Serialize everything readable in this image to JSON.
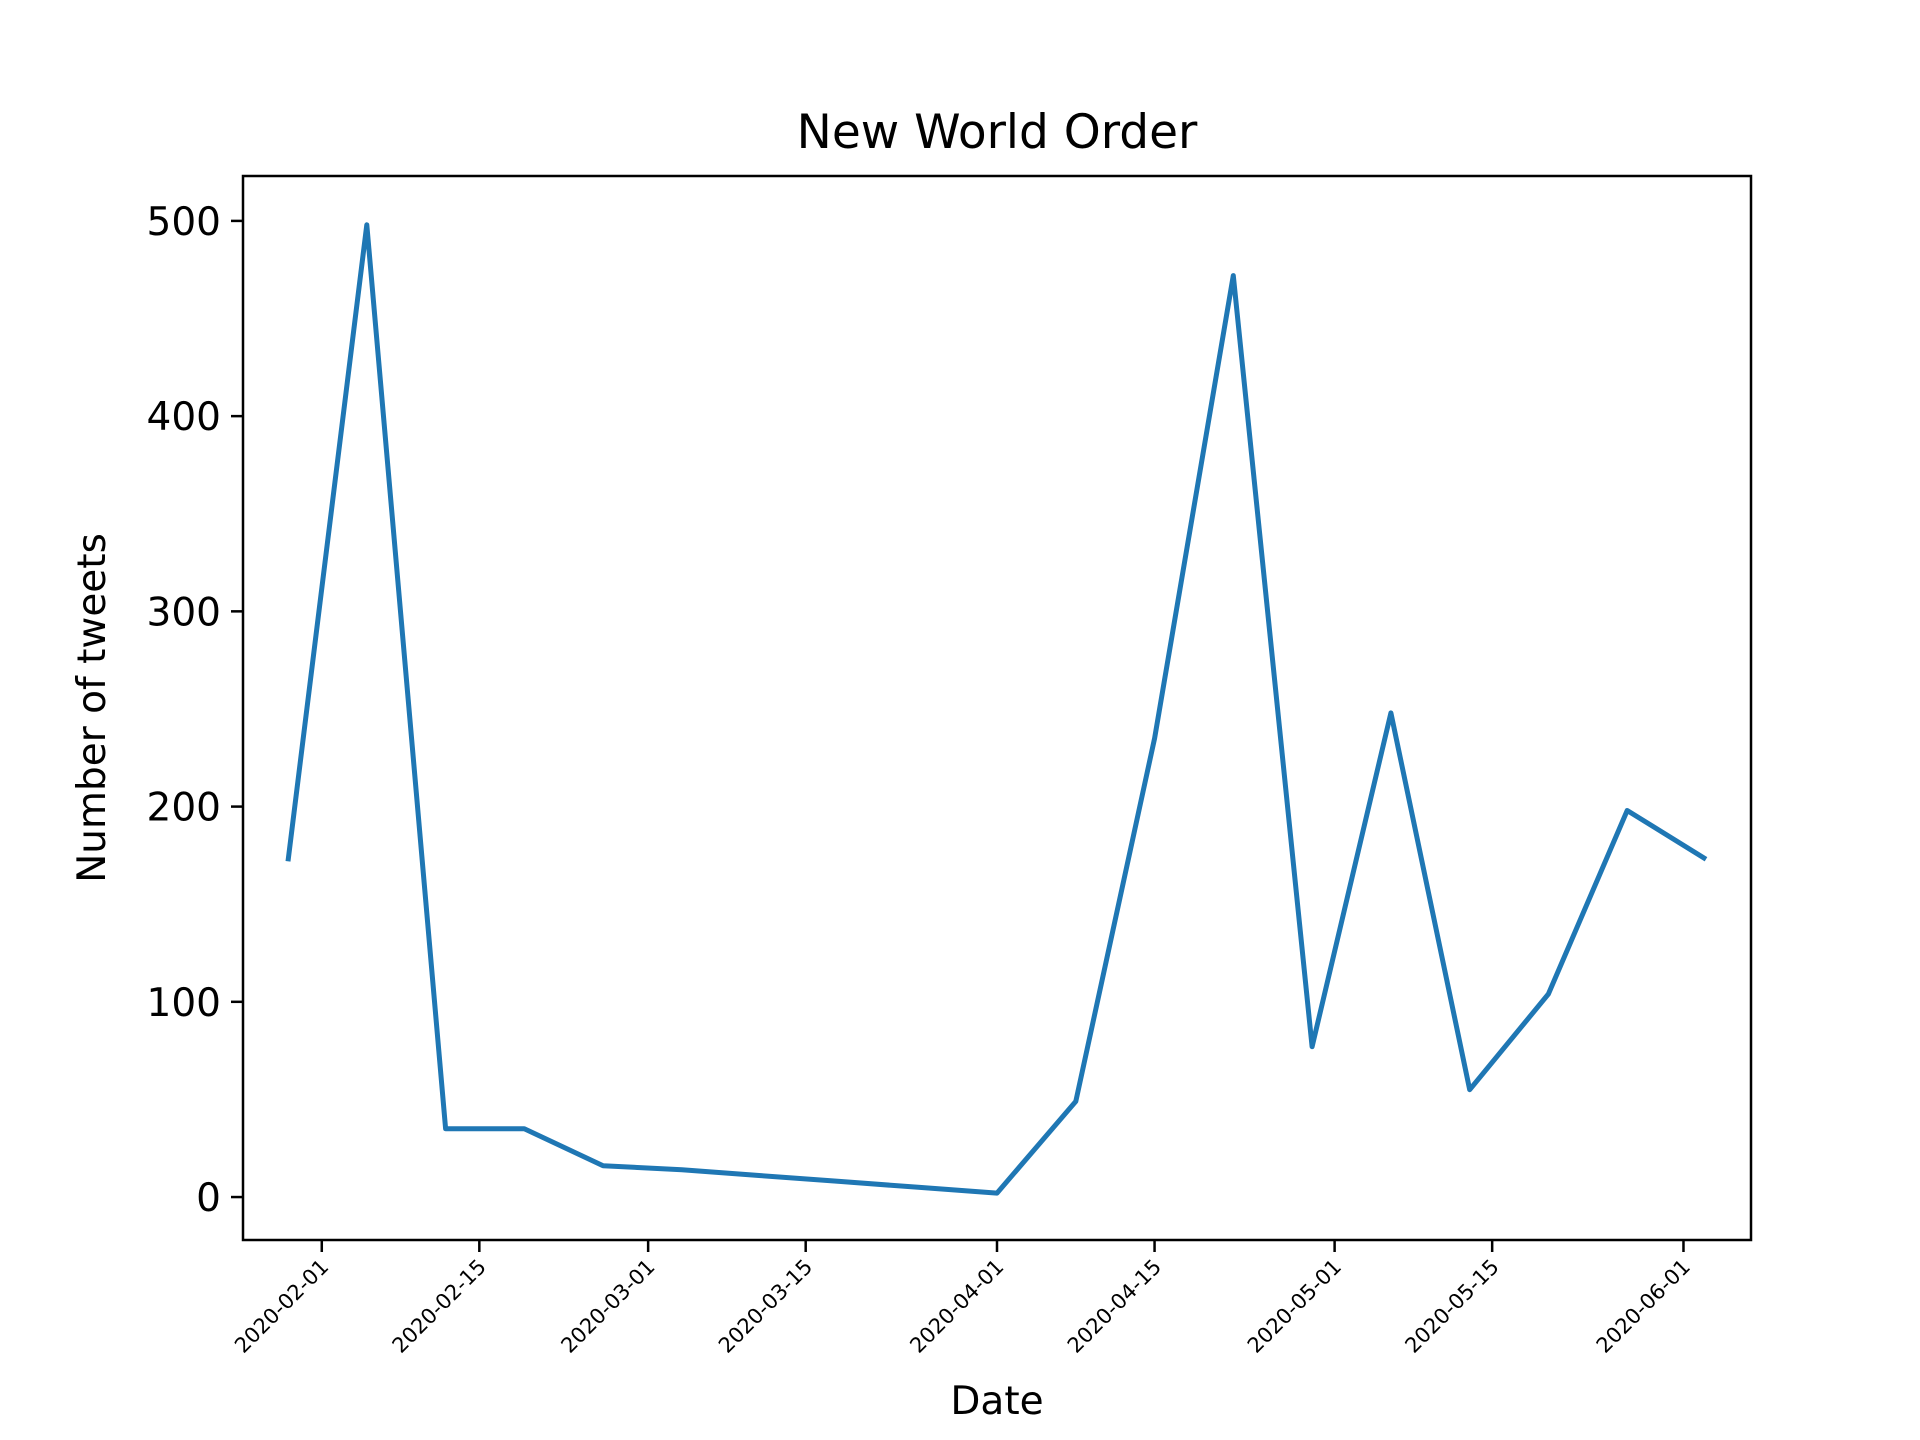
{
  "chart_data": {
    "type": "line",
    "title": "New World Order",
    "xlabel": "Date",
    "ylabel": "Number of tweets",
    "x_type": "date",
    "xlim": [
      "2020-01-25",
      "2020-06-07"
    ],
    "ylim": [
      -22,
      523
    ],
    "yticks": [
      0,
      100,
      200,
      300,
      400,
      500
    ],
    "xticks": [
      "2020-02-01",
      "2020-02-15",
      "2020-03-01",
      "2020-03-15",
      "2020-04-01",
      "2020-04-15",
      "2020-05-01",
      "2020-05-15",
      "2020-06-01"
    ],
    "grid": false,
    "series": [
      {
        "color": "#1f77b4",
        "x": [
          "2020-01-29",
          "2020-02-05",
          "2020-02-12",
          "2020-02-19",
          "2020-02-26",
          "2020-03-04",
          "2020-03-11",
          "2020-03-18",
          "2020-03-25",
          "2020-04-01",
          "2020-04-08",
          "2020-04-15",
          "2020-04-22",
          "2020-04-29",
          "2020-05-06",
          "2020-05-13",
          "2020-05-20",
          "2020-05-27",
          "2020-06-03"
        ],
        "y": [
          172,
          498,
          35,
          35,
          16,
          14,
          11,
          8,
          5,
          2,
          49,
          235,
          472,
          77,
          248,
          55,
          104,
          198,
          173
        ]
      }
    ]
  }
}
